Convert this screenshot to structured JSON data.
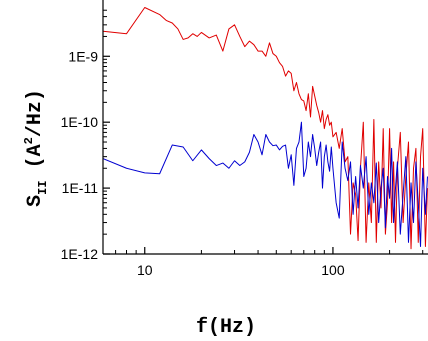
{
  "chart_data": {
    "type": "line",
    "title": "",
    "xlabel": "f(Hz)",
    "ylabel": {
      "main": "S",
      "subscript": "II",
      "open": " (A",
      "superscript": "2",
      "close": "/Hz)"
    },
    "xscale": "log",
    "yscale": "log",
    "xlim": [
      6,
      320
    ],
    "ylim": [
      1e-12,
      6e-09
    ],
    "x_ticks": [
      {
        "value": 10,
        "label": "10"
      },
      {
        "value": 100,
        "label": "100"
      }
    ],
    "y_ticks": [
      {
        "value": 1e-12,
        "label": "1E-12"
      },
      {
        "value": 1e-11,
        "label": "1E-11"
      },
      {
        "value": 1e-10,
        "label": "1E-10"
      },
      {
        "value": 1e-09,
        "label": "1E-9"
      }
    ],
    "grid": false,
    "legend": "none",
    "series": [
      {
        "color": "#e00000",
        "points": [
          [
            6,
            2.4e-09
          ],
          [
            8,
            2.2e-09
          ],
          [
            10,
            5.5e-09
          ],
          [
            12,
            4.3e-09
          ],
          [
            13,
            3.5e-09
          ],
          [
            14,
            3.2e-09
          ],
          [
            15,
            2.6e-09
          ],
          [
            16,
            1.8e-09
          ],
          [
            17,
            1.9e-09
          ],
          [
            18,
            2.2e-09
          ],
          [
            19,
            2e-09
          ],
          [
            20,
            2.3e-09
          ],
          [
            22,
            1.9e-09
          ],
          [
            24,
            2.1e-09
          ],
          [
            26,
            1.2e-09
          ],
          [
            28,
            2.6e-09
          ],
          [
            30,
            3e-09
          ],
          [
            32,
            2e-09
          ],
          [
            34,
            1.4e-09
          ],
          [
            36,
            1.7e-09
          ],
          [
            38,
            1.5e-09
          ],
          [
            40,
            1.2e-09
          ],
          [
            42,
            1.2e-09
          ],
          [
            44,
            1e-09
          ],
          [
            46,
            1.6e-09
          ],
          [
            48,
            1.1e-09
          ],
          [
            50,
            1e-09
          ],
          [
            52,
            8e-10
          ],
          [
            54,
            7e-10
          ],
          [
            56,
            5e-10
          ],
          [
            58,
            6e-10
          ],
          [
            60,
            5.5e-10
          ],
          [
            62,
            3e-10
          ],
          [
            64,
            4e-10
          ],
          [
            66,
            2.7e-10
          ],
          [
            68,
            2.2e-10
          ],
          [
            70,
            2.1e-10
          ],
          [
            72,
            1.5e-10
          ],
          [
            74,
            2.7e-10
          ],
          [
            76,
            1.2e-10
          ],
          [
            78,
            3.5e-10
          ],
          [
            80,
            2.5e-10
          ],
          [
            82,
            1.8e-10
          ],
          [
            84,
            1.4e-10
          ],
          [
            86,
            1e-10
          ],
          [
            88,
            1.5e-10
          ],
          [
            90,
            8e-11
          ],
          [
            92,
            1.1e-10
          ],
          [
            94,
            1.3e-10
          ],
          [
            96,
            9e-11
          ],
          [
            98,
            1e-10
          ],
          [
            100,
            6e-11
          ],
          [
            104,
            7e-11
          ],
          [
            108,
            4e-11
          ],
          [
            112,
            8e-11
          ],
          [
            116,
            2.5e-11
          ],
          [
            120,
            3e-11
          ],
          [
            124,
            2e-12
          ],
          [
            128,
            1.2e-11
          ],
          [
            132,
            8e-12
          ],
          [
            136,
            1.6e-12
          ],
          [
            140,
            2e-11
          ],
          [
            145,
            1e-10
          ],
          [
            150,
            1.5e-12
          ],
          [
            155,
            1.2e-11
          ],
          [
            160,
            3e-12
          ],
          [
            165,
            1.1e-10
          ],
          [
            170,
            1.5e-12
          ],
          [
            175,
            2.5e-11
          ],
          [
            180,
            5e-12
          ],
          [
            185,
            8e-11
          ],
          [
            190,
            2e-12
          ],
          [
            195,
            6e-12
          ],
          [
            200,
            8e-11
          ],
          [
            205,
            3e-12
          ],
          [
            210,
            2.5e-11
          ],
          [
            215,
            1.5e-12
          ],
          [
            220,
            2e-11
          ],
          [
            228,
            7e-11
          ],
          [
            236,
            3e-12
          ],
          [
            244,
            1.5e-11
          ],
          [
            252,
            5e-11
          ],
          [
            260,
            1.2e-12
          ],
          [
            268,
            2e-11
          ],
          [
            276,
            4e-11
          ],
          [
            284,
            1.5e-12
          ],
          [
            292,
            3e-11
          ],
          [
            300,
            8e-11
          ],
          [
            310,
            1.3e-12
          ],
          [
            318,
            1e-11
          ]
        ]
      },
      {
        "color": "#0000d0",
        "points": [
          [
            6,
            2.8e-11
          ],
          [
            8,
            2e-11
          ],
          [
            10,
            1.7e-11
          ],
          [
            12,
            1.65e-11
          ],
          [
            14,
            4.5e-11
          ],
          [
            16,
            4.2e-11
          ],
          [
            18,
            2.6e-11
          ],
          [
            20,
            3.8e-11
          ],
          [
            22,
            2.8e-11
          ],
          [
            24,
            2.2e-11
          ],
          [
            26,
            2.4e-11
          ],
          [
            28,
            2e-11
          ],
          [
            30,
            2.6e-11
          ],
          [
            32,
            2.2e-11
          ],
          [
            34,
            2.5e-11
          ],
          [
            36,
            3.5e-11
          ],
          [
            38,
            6.5e-11
          ],
          [
            40,
            5e-11
          ],
          [
            42,
            3.2e-11
          ],
          [
            44,
            6.5e-11
          ],
          [
            46,
            5e-11
          ],
          [
            48,
            4.4e-11
          ],
          [
            50,
            4.5e-11
          ],
          [
            52,
            3.8e-11
          ],
          [
            54,
            4.3e-11
          ],
          [
            56,
            4.5e-11
          ],
          [
            58,
            2e-11
          ],
          [
            60,
            3.2e-11
          ],
          [
            62,
            1.1e-11
          ],
          [
            64,
            4e-11
          ],
          [
            66,
            5e-11
          ],
          [
            68,
            1e-10
          ],
          [
            70,
            1.5e-11
          ],
          [
            72,
            2e-11
          ],
          [
            74,
            5e-11
          ],
          [
            76,
            3e-11
          ],
          [
            78,
            6.5e-11
          ],
          [
            80,
            4e-11
          ],
          [
            82,
            2.2e-11
          ],
          [
            84,
            3.5e-11
          ],
          [
            86,
            5e-11
          ],
          [
            88,
            1e-11
          ],
          [
            90,
            3e-11
          ],
          [
            92,
            4.5e-11
          ],
          [
            94,
            2.5e-11
          ],
          [
            96,
            1.8e-11
          ],
          [
            98,
            4.2e-11
          ],
          [
            100,
            2e-11
          ],
          [
            104,
            6e-12
          ],
          [
            108,
            3.5e-12
          ],
          [
            112,
            5e-11
          ],
          [
            116,
            2e-11
          ],
          [
            120,
            1.3e-11
          ],
          [
            124,
            2.5e-11
          ],
          [
            128,
            4e-12
          ],
          [
            132,
            1.5e-11
          ],
          [
            136,
            5e-12
          ],
          [
            140,
            2.2e-11
          ],
          [
            145,
            1e-11
          ],
          [
            150,
            3e-11
          ],
          [
            155,
            4e-12
          ],
          [
            160,
            1.2e-11
          ],
          [
            165,
            6e-12
          ],
          [
            170,
            2.4e-11
          ],
          [
            175,
            3e-12
          ],
          [
            180,
            1e-11
          ],
          [
            185,
            2e-11
          ],
          [
            190,
            2.5e-12
          ],
          [
            195,
            1.5e-11
          ],
          [
            200,
            7e-12
          ],
          [
            205,
            4e-11
          ],
          [
            210,
            3e-12
          ],
          [
            215,
            1e-11
          ],
          [
            220,
            2.5e-11
          ],
          [
            228,
            2e-12
          ],
          [
            236,
            8e-12
          ],
          [
            244,
            3e-11
          ],
          [
            252,
            1.5e-12
          ],
          [
            260,
            1.2e-11
          ],
          [
            268,
            3e-12
          ],
          [
            276,
            2.5e-11
          ],
          [
            284,
            6e-12
          ],
          [
            292,
            1.3e-12
          ],
          [
            300,
            2e-11
          ],
          [
            310,
            4e-12
          ],
          [
            318,
            1.5e-11
          ]
        ]
      }
    ]
  }
}
